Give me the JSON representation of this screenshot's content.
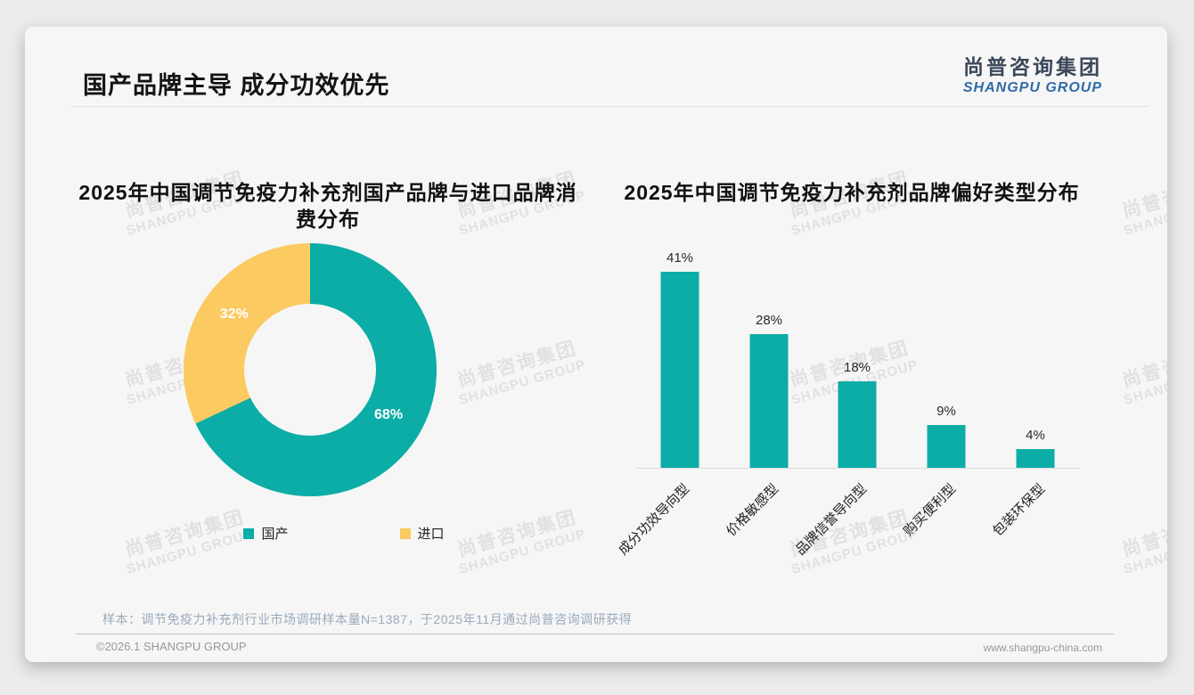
{
  "header": {
    "title": "国产品牌主导 成分功效优先",
    "logo_cn": "尚普咨询集团",
    "logo_en": "SHANGPU GROUP"
  },
  "watermark": {
    "line1": "尚普咨询集团",
    "line2": "SHANGPU GROUP"
  },
  "chart_data": [
    {
      "type": "pie",
      "subtype": "donut",
      "title": "2025年中国调节免疫力补充剂国产品牌与进口品牌消费分布",
      "title_lines": [
        "2025年中国调节免疫力补充剂国产品牌与进口品牌消",
        "费分布"
      ],
      "labels": [
        "国产",
        "进口"
      ],
      "values": [
        68,
        32
      ],
      "value_labels": [
        "68%",
        "32%"
      ],
      "colors": [
        "#0bada6",
        "#fbca61"
      ],
      "legend_position": "bottom",
      "start_angle_deg": 0,
      "direction": "clockwise"
    },
    {
      "type": "bar",
      "title": "2025年中国调节免疫力补充剂品牌偏好类型分布",
      "categories": [
        "成分功效导向型",
        "价格敏感型",
        "品牌信誉导向型",
        "购买便利型",
        "包装环保型"
      ],
      "values": [
        41,
        28,
        18,
        9,
        4
      ],
      "value_labels": [
        "41%",
        "28%",
        "18%",
        "9%",
        "4%"
      ],
      "bar_color": "#0bada6",
      "ylim": [
        0,
        45
      ],
      "grid": false,
      "label_rotation": -45,
      "legend_position": "none"
    }
  ],
  "footnote": "样本：调节免疫力补充剂行业市场调研样本量N=1387，于2025年11月通过尚普咨询调研获得",
  "footer": {
    "copyright": "©2026.1 SHANGPU GROUP",
    "website": "www.shangpu-china.com"
  }
}
